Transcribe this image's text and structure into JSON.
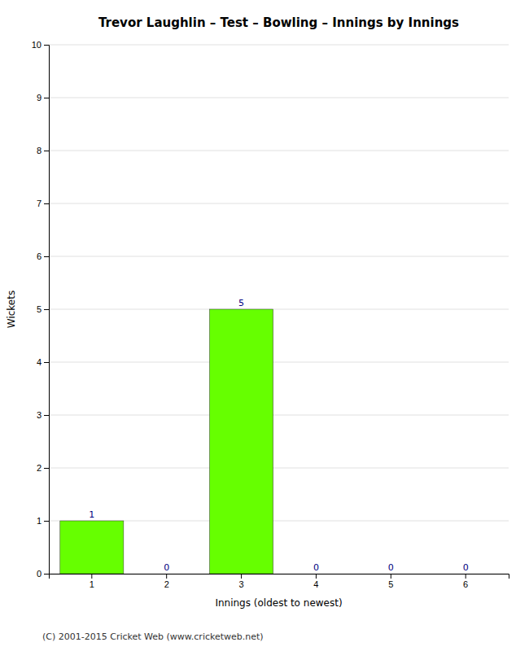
{
  "chart_data": {
    "type": "bar",
    "title": "Trevor Laughlin – Test – Bowling – Innings by Innings",
    "x_label": "Innings (oldest to newest)",
    "y_label": "Wickets",
    "categories": [
      "1",
      "2",
      "3",
      "4",
      "5",
      "6"
    ],
    "values": [
      1,
      0,
      5,
      0,
      0,
      0
    ],
    "color": "#66ff00",
    "ylim": [
      0,
      10
    ],
    "yticks": [
      0,
      1,
      2,
      3,
      4,
      5,
      6,
      7,
      8,
      9,
      10
    ],
    "grid": true,
    "data_labels": true,
    "annotations": [
      "(C) 2001-2015 Cricket Web (www.cricketweb.net)"
    ]
  }
}
